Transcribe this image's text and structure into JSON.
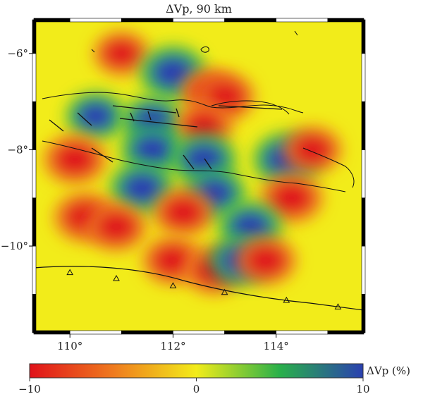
{
  "title": "ΔVp, 90 km",
  "map": {
    "lon_range": [
      109.3,
      115.7
    ],
    "lat_range": [
      -11.8,
      -5.3
    ],
    "x_ticks": [
      {
        "value": 110,
        "label": "110°"
      },
      {
        "value": 112,
        "label": "112°"
      },
      {
        "value": 114,
        "label": "114°"
      }
    ],
    "y_ticks": [
      {
        "value": -6,
        "label": "−6°"
      },
      {
        "value": -8,
        "label": "−8°"
      },
      {
        "value": -10,
        "label": "−10°"
      }
    ],
    "background_color": "#f2ec1a"
  },
  "colorbar": {
    "label": "ΔVp (%)",
    "min_label": "−10",
    "mid_label": "0",
    "max_label": "10",
    "colors": [
      "#e0121a",
      "#ef7a1e",
      "#f2ec1a",
      "#29b04a",
      "#2a40b0"
    ]
  },
  "anomalies": [
    {
      "lon": 111.0,
      "lat": -6.0,
      "type": "slow",
      "strength": 0.6
    },
    {
      "lon": 112.0,
      "lat": -6.4,
      "type": "fast",
      "strength": 1.0
    },
    {
      "lon": 112.7,
      "lat": -6.8,
      "type": "slow",
      "strength": 0.7
    },
    {
      "lon": 113.0,
      "lat": -6.9,
      "type": "slow",
      "strength": 0.9
    },
    {
      "lon": 110.5,
      "lat": -7.3,
      "type": "fast",
      "strength": 0.6
    },
    {
      "lon": 111.6,
      "lat": -7.4,
      "type": "fast",
      "strength": 0.7
    },
    {
      "lon": 112.6,
      "lat": -7.5,
      "type": "slow",
      "strength": 0.7
    },
    {
      "lon": 110.1,
      "lat": -8.2,
      "type": "slow",
      "strength": 1.0
    },
    {
      "lon": 111.6,
      "lat": -8.0,
      "type": "fast",
      "strength": 0.8
    },
    {
      "lon": 112.6,
      "lat": -8.2,
      "type": "fast",
      "strength": 0.9
    },
    {
      "lon": 114.2,
      "lat": -8.2,
      "type": "fast",
      "strength": 1.0
    },
    {
      "lon": 114.7,
      "lat": -8.0,
      "type": "slow",
      "strength": 0.8
    },
    {
      "lon": 111.4,
      "lat": -8.8,
      "type": "fast",
      "strength": 0.9
    },
    {
      "lon": 112.8,
      "lat": -8.9,
      "type": "fast",
      "strength": 0.8
    },
    {
      "lon": 114.3,
      "lat": -9.0,
      "type": "slow",
      "strength": 1.0
    },
    {
      "lon": 110.3,
      "lat": -9.4,
      "type": "slow",
      "strength": 1.0
    },
    {
      "lon": 110.9,
      "lat": -9.6,
      "type": "slow",
      "strength": 0.9
    },
    {
      "lon": 112.2,
      "lat": -9.3,
      "type": "slow",
      "strength": 0.9
    },
    {
      "lon": 113.5,
      "lat": -9.6,
      "type": "fast",
      "strength": 0.8
    },
    {
      "lon": 112.0,
      "lat": -10.3,
      "type": "slow",
      "strength": 0.9
    },
    {
      "lon": 112.8,
      "lat": -10.5,
      "type": "slow",
      "strength": 0.9
    },
    {
      "lon": 113.3,
      "lat": -10.3,
      "type": "fast",
      "strength": 0.8
    },
    {
      "lon": 113.8,
      "lat": -10.3,
      "type": "slow",
      "strength": 0.9
    }
  ],
  "trench_triangles_lon": [
    110.0,
    110.9,
    112.0,
    113.0,
    114.2,
    115.2
  ]
}
